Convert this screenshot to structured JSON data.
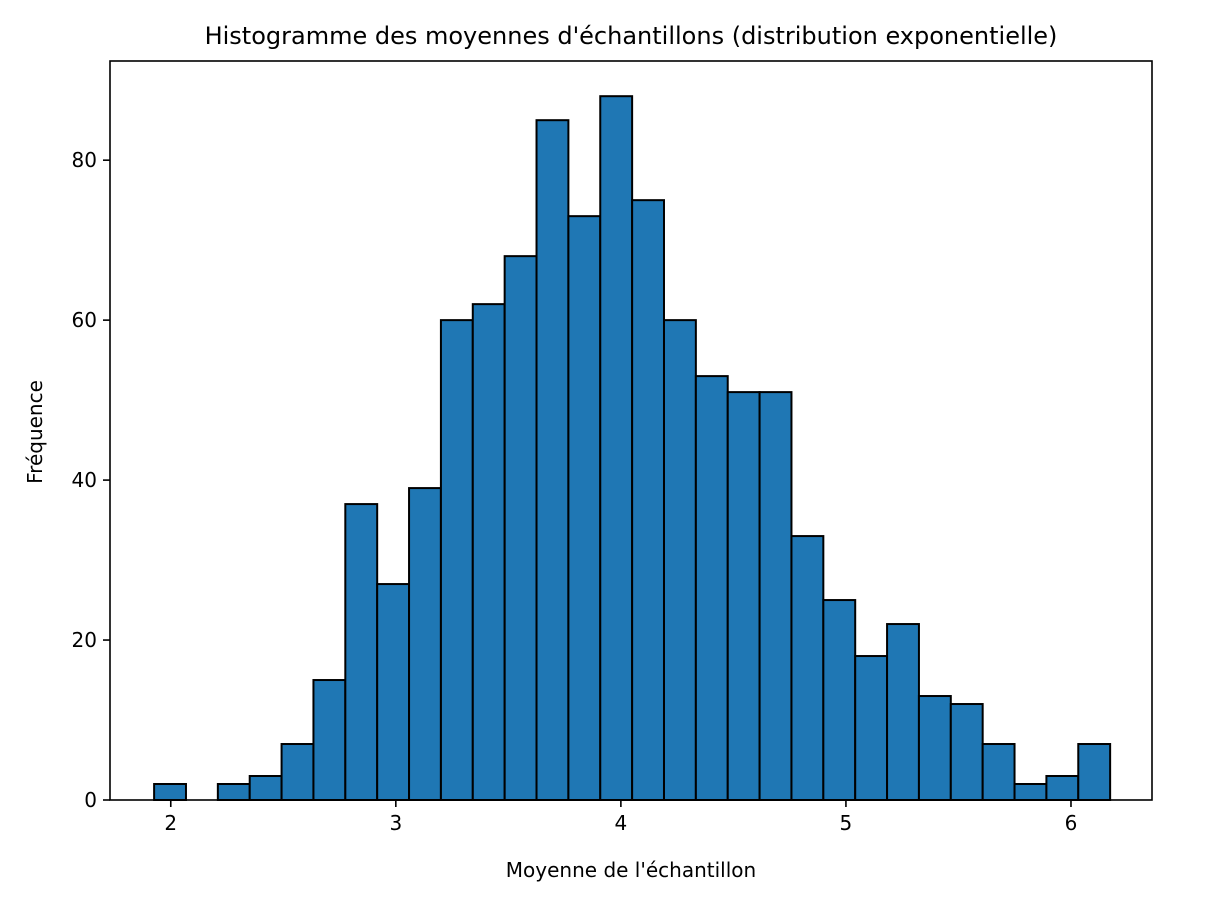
{
  "chart_data": {
    "type": "bar",
    "title": "Histogramme des moyennes d'échantillons (distribution exponentielle)",
    "xlabel": "Moyenne de l'échantillon",
    "ylabel": "Fréquence",
    "xlim": [
      1.73,
      6.36
    ],
    "ylim": [
      0,
      92.4
    ],
    "xticks": [
      2,
      3,
      4,
      5,
      6
    ],
    "yticks": [
      0,
      20,
      40,
      60,
      80
    ],
    "bin_start": 1.926,
    "bin_width": 0.1416,
    "values": [
      2,
      0,
      2,
      3,
      7,
      15,
      37,
      27,
      39,
      60,
      62,
      68,
      85,
      73,
      88,
      75,
      60,
      53,
      51,
      51,
      33,
      25,
      18,
      22,
      13,
      12,
      7,
      2,
      3,
      7
    ],
    "colors": {
      "bar": "#1f77b4",
      "edge": "#000000"
    },
    "grid": false,
    "legend": "none"
  }
}
